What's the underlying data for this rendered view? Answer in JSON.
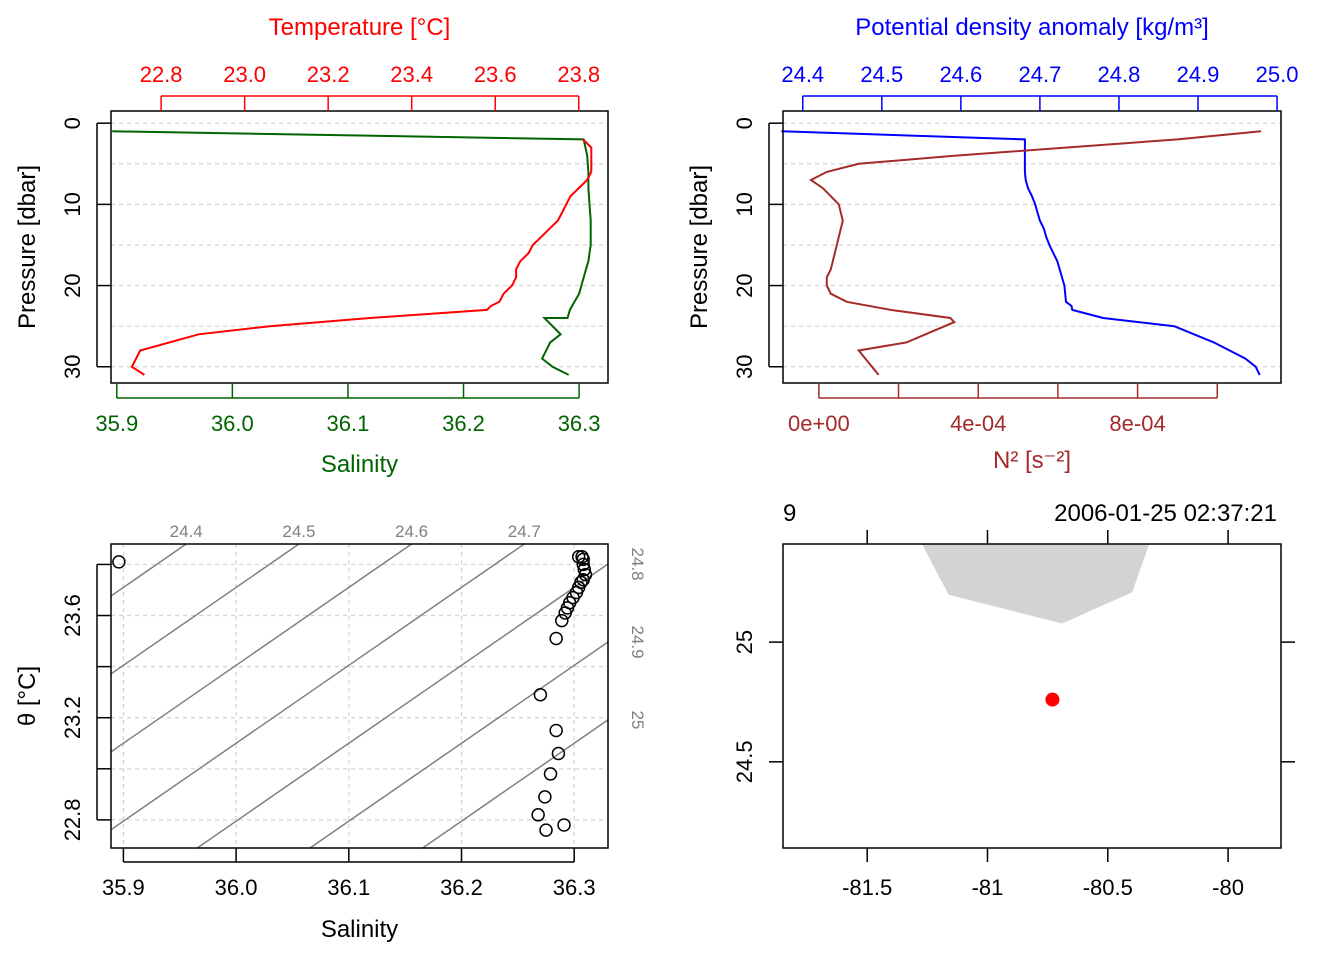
{
  "colors": {
    "temperature": "#ff0000",
    "salinity": "#006400",
    "density": "#0000ff",
    "n2": "#a52a2a",
    "grid": "#d3d3d3",
    "isopycnal": "#808080",
    "land": "#d3d3d3",
    "station": "#ff0000"
  },
  "chart_data": [
    {
      "type": "line",
      "panel": "temperature-salinity-profile",
      "title_top": "Temperature [°C]",
      "xlabel_bottom": "Salinity",
      "ylabel": "Pressure [dbar]",
      "top_ticks": [
        "22.8",
        "23.0",
        "23.2",
        "23.4",
        "23.6",
        "23.8"
      ],
      "bottom_ticks": [
        "35.9",
        "36.0",
        "36.1",
        "36.2",
        "36.3"
      ],
      "y_ticks": [
        "0",
        "10",
        "20",
        "30"
      ],
      "xlim_top": [
        22.68,
        23.87
      ],
      "xlim_bottom": [
        35.895,
        36.325
      ],
      "ylim": [
        -1.5,
        32
      ],
      "grid": true,
      "series": [
        {
          "name": "Temperature",
          "axis": "top",
          "x": [
            23.81,
            23.83,
            23.83,
            23.83,
            23.83,
            23.82,
            23.8,
            23.78,
            23.77,
            23.76,
            23.75,
            23.73,
            23.71,
            23.69,
            23.68,
            23.66,
            23.65,
            23.65,
            23.64,
            23.62,
            23.61,
            23.59,
            23.58,
            23.58,
            23.3,
            23.06,
            22.89,
            22.75,
            22.73,
            22.76
          ],
          "y": [
            2,
            3,
            4,
            5,
            6,
            7,
            8,
            9,
            10,
            11,
            12,
            13,
            14,
            15,
            16,
            17,
            18,
            19,
            20,
            21,
            22,
            22.5,
            23,
            23,
            24,
            25,
            26,
            28,
            30,
            31
          ]
        },
        {
          "name": "Salinity",
          "axis": "bottom",
          "x": [
            35.896,
            36.304,
            36.307,
            36.308,
            36.308,
            36.309,
            36.31,
            36.31,
            36.31,
            36.309,
            36.308,
            36.306,
            36.304,
            36.302,
            36.3,
            36.296,
            36.292,
            36.29,
            36.286,
            36.27,
            36.284,
            36.275,
            36.268,
            36.277,
            36.291
          ],
          "y": [
            1,
            2,
            4,
            6,
            8,
            10,
            12,
            14,
            15,
            16,
            17,
            18,
            19,
            20,
            21,
            22,
            23,
            24,
            24,
            24,
            26,
            27,
            29,
            30,
            31
          ]
        }
      ]
    },
    {
      "type": "line",
      "panel": "density-n2-profile",
      "title_top": "Potential density anomaly [kg/m³]",
      "xlabel_bottom": "N² [s⁻²]",
      "ylabel": "Pressure [dbar]",
      "top_ticks": [
        "24.4",
        "24.5",
        "24.6",
        "24.7",
        "24.8",
        "24.9",
        "25.0"
      ],
      "bottom_ticks": [
        "0e+00",
        "4e-04",
        "8e-04"
      ],
      "y_ticks": [
        "0",
        "10",
        "20",
        "30"
      ],
      "xlim_top": [
        24.375,
        25.005
      ],
      "xlim_bottom": [
        -9e-05,
        0.00116
      ],
      "ylim": [
        -1.5,
        32
      ],
      "grid": true,
      "series": [
        {
          "name": "Potential density anomaly",
          "axis": "top",
          "x": [
            24.373,
            24.681,
            24.681,
            24.681,
            24.682,
            24.685,
            24.69,
            24.694,
            24.697,
            24.7,
            24.705,
            24.708,
            24.712,
            24.717,
            24.722,
            24.725,
            24.728,
            24.731,
            24.732,
            24.733,
            24.74,
            24.741,
            24.78,
            24.87,
            24.92,
            24.96,
            24.973,
            24.978
          ],
          "y": [
            1,
            2,
            4,
            6,
            7,
            8,
            9,
            10,
            11,
            12,
            13,
            14,
            15,
            16,
            17,
            18,
            19,
            20,
            21,
            22,
            22.5,
            23,
            24,
            25,
            27,
            29,
            30,
            31
          ]
        },
        {
          "name": "N²",
          "axis": "bottom",
          "x": [
            0.00111,
            0.0009,
            0.00034,
            0.0001,
            2e-05,
            -2e-05,
            1e-05,
            5e-05,
            6e-05,
            5e-05,
            4e-05,
            3e-05,
            2e-05,
            2e-05,
            3e-05,
            7e-05,
            0.00018,
            0.00033,
            0.00034,
            0.00022,
            0.0001,
            0.00015
          ],
          "y": [
            1,
            2,
            4,
            5,
            6,
            7,
            8,
            10,
            12,
            14,
            16,
            18,
            19,
            20,
            21,
            22,
            23,
            24,
            24.5,
            27,
            28,
            31
          ]
        }
      ]
    },
    {
      "type": "scatter",
      "panel": "ts-diagram",
      "xlabel": "Salinity",
      "ylabel": "θ [°C]",
      "x_ticks": [
        "35.9",
        "36.0",
        "36.1",
        "36.2",
        "36.3"
      ],
      "y_ticks": [
        "22.8",
        "23.2",
        "23.6"
      ],
      "xlim": [
        35.889,
        36.33
      ],
      "ylim": [
        22.69,
        23.88
      ],
      "grid": true,
      "isopycnals": [
        {
          "label": "24.4",
          "t_at_s0": 23.71
        },
        {
          "label": "24.5",
          "t_at_s0": 23.405
        },
        {
          "label": "24.6",
          "t_at_s0": 23.1
        },
        {
          "label": "24.7",
          "t_at_s0": 22.795
        },
        {
          "label": "24.8",
          "t_at_s0": 22.49
        },
        {
          "label": "24.9",
          "t_at_s0": 22.185
        },
        {
          "label": "25",
          "t_at_s0": 21.88
        }
      ],
      "isopycnal_slope": 3.05,
      "points": {
        "x": [
          35.896,
          36.304,
          36.307,
          36.308,
          36.308,
          36.309,
          36.31,
          36.308,
          36.306,
          36.304,
          36.302,
          36.299,
          36.296,
          36.294,
          36.292,
          36.289,
          36.284,
          36.27,
          36.284,
          36.286,
          36.279,
          36.274,
          36.268,
          36.275,
          36.291
        ],
        "y": [
          23.81,
          23.83,
          23.83,
          23.82,
          23.8,
          23.78,
          23.76,
          23.74,
          23.73,
          23.71,
          23.69,
          23.67,
          23.65,
          23.63,
          23.61,
          23.58,
          23.51,
          23.29,
          23.15,
          23.06,
          22.98,
          22.89,
          22.82,
          22.76,
          22.78
        ]
      }
    },
    {
      "type": "map",
      "panel": "station-map",
      "station": "9",
      "datetime": "2006-01-25 02:37:21",
      "x_ticks": [
        "-81.5",
        "-81",
        "-80.5",
        "-80"
      ],
      "y_ticks": [
        "25",
        "24.5"
      ],
      "xlim": [
        -81.85,
        -79.78
      ],
      "ylim": [
        24.14,
        25.41
      ],
      "station_position": {
        "lon": -80.73,
        "lat": 24.76
      },
      "land_polygon": {
        "lon": [
          -81.27,
          -81.16,
          -80.69,
          -80.4,
          -80.33
        ],
        "lat": [
          25.41,
          25.2,
          25.08,
          25.21,
          25.41
        ]
      }
    }
  ]
}
